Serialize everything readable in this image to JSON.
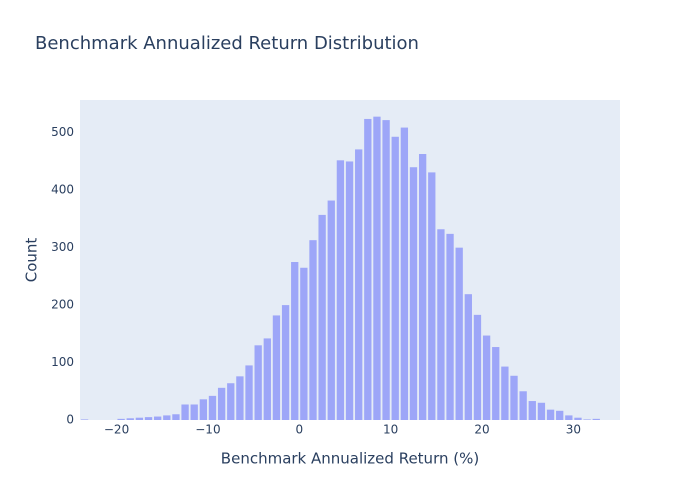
{
  "chart_data": {
    "type": "histogram",
    "title": "Benchmark Annualized Return Distribution",
    "x_label": "Benchmark Annualized Return (%)",
    "y_label": "Count",
    "bins": [
      -24,
      -23,
      -22,
      -21,
      -20,
      -19,
      -18,
      -17,
      -16,
      -15,
      -14,
      -13,
      -12,
      -11,
      -10,
      -9,
      -8,
      -7,
      -6,
      -5,
      -4,
      -3,
      -2,
      -1,
      0,
      1,
      2,
      3,
      4,
      5,
      6,
      7,
      8,
      9,
      10,
      11,
      12,
      13,
      14,
      15,
      16,
      17,
      18,
      19,
      20,
      21,
      22,
      23,
      24,
      25,
      26,
      27,
      28,
      29,
      30,
      31,
      32,
      33
    ],
    "values": [
      1,
      0,
      0,
      0,
      2,
      3,
      4,
      5,
      6,
      8,
      10,
      27,
      27,
      36,
      42,
      56,
      64,
      76,
      95,
      130,
      142,
      182,
      200,
      275,
      265,
      313,
      357,
      382,
      452,
      450,
      471,
      524,
      528,
      522,
      493,
      509,
      440,
      463,
      431,
      332,
      324,
      300,
      219,
      183,
      147,
      127,
      93,
      77,
      50,
      33,
      30,
      18,
      16,
      8,
      4,
      1,
      2
    ],
    "color": "#636efa",
    "opacity": 0.55,
    "xlim": [
      -24,
      35.1
    ],
    "ylim": [
      0,
      557
    ],
    "xticks": [
      {
        "value": -20,
        "label": "−20"
      },
      {
        "value": -10,
        "label": "−10"
      },
      0,
      10,
      20,
      30
    ],
    "yticks": [
      0,
      100,
      200,
      300,
      400,
      500
    ],
    "grid": true
  }
}
